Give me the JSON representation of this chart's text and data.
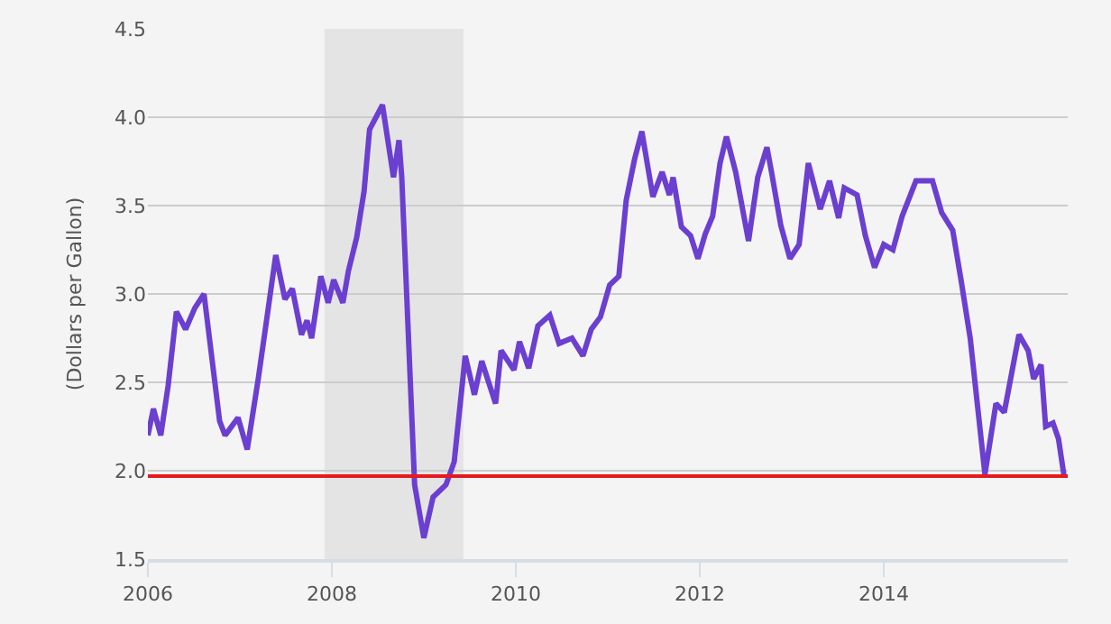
{
  "chart_data": {
    "type": "line",
    "ylabel": "(Dollars per Gallon)",
    "xlim": [
      2006,
      2016
    ],
    "xticks": [
      {
        "value": 2006,
        "label": "2006"
      },
      {
        "value": 2008,
        "label": "2008"
      },
      {
        "value": 2010,
        "label": "2010"
      },
      {
        "value": 2012,
        "label": "2012"
      },
      {
        "value": 2014,
        "label": "2014"
      }
    ],
    "ylim": [
      1.5,
      4.5
    ],
    "yticks": [
      1.5,
      {
        "value": 2,
        "label": "2.0"
      },
      2.5,
      {
        "value": 3,
        "label": "3.0"
      },
      3.5,
      {
        "value": 4,
        "label": "4.0"
      },
      4.5
    ],
    "grid": "y",
    "x": [
      2006.0,
      2006.06,
      2006.14,
      2006.22,
      2006.31,
      2006.41,
      2006.51,
      2006.61,
      2006.78,
      2006.84,
      2006.98,
      2007.08,
      2007.2,
      2007.29,
      2007.39,
      2007.49,
      2007.57,
      2007.67,
      2007.73,
      2007.78,
      2007.88,
      2007.96,
      2008.02,
      2008.12,
      2008.18,
      2008.27,
      2008.35,
      2008.41,
      2008.55,
      2008.67,
      2008.73,
      2008.76,
      2008.9,
      2009.0,
      2009.1,
      2009.24,
      2009.33,
      2009.45,
      2009.55,
      2009.63,
      2009.78,
      2009.84,
      2009.98,
      2010.04,
      2010.14,
      2010.24,
      2010.37,
      2010.47,
      2010.61,
      2010.73,
      2010.82,
      2010.92,
      2011.02,
      2011.12,
      2011.2,
      2011.29,
      2011.37,
      2011.49,
      2011.59,
      2011.67,
      2011.71,
      2011.8,
      2011.9,
      2011.98,
      2012.06,
      2012.14,
      2012.22,
      2012.29,
      2012.39,
      2012.53,
      2012.63,
      2012.73,
      2012.78,
      2012.88,
      2012.98,
      2013.08,
      2013.18,
      2013.31,
      2013.41,
      2013.51,
      2013.57,
      2013.71,
      2013.8,
      2013.9,
      2014.0,
      2014.1,
      2014.2,
      2014.35,
      2014.53,
      2014.63,
      2014.75,
      2014.84,
      2014.94,
      2015.1,
      2015.22,
      2015.31,
      2015.47,
      2015.57,
      2015.63,
      2015.71,
      2015.76,
      2015.84,
      2015.9,
      2015.96
    ],
    "series": [
      {
        "color": "#6b3fd0",
        "line_style": "solid",
        "marker": "none",
        "values": [
          2.2,
          2.35,
          2.2,
          2.48,
          2.9,
          2.8,
          2.92,
          3.0,
          2.28,
          2.2,
          2.3,
          2.12,
          2.52,
          2.85,
          3.22,
          2.97,
          3.03,
          2.77,
          2.85,
          2.75,
          3.1,
          2.95,
          3.08,
          2.95,
          3.13,
          3.32,
          3.58,
          3.93,
          4.07,
          3.66,
          3.87,
          3.66,
          1.92,
          1.62,
          1.85,
          1.92,
          2.05,
          2.65,
          2.43,
          2.62,
          2.38,
          2.68,
          2.57,
          2.73,
          2.58,
          2.82,
          2.88,
          2.72,
          2.75,
          2.65,
          2.8,
          2.87,
          3.05,
          3.1,
          3.53,
          3.76,
          3.92,
          3.55,
          3.69,
          3.56,
          3.66,
          3.38,
          3.33,
          3.2,
          3.34,
          3.44,
          3.74,
          3.89,
          3.69,
          3.3,
          3.66,
          3.83,
          3.69,
          3.39,
          3.2,
          3.28,
          3.74,
          3.48,
          3.64,
          3.43,
          3.6,
          3.56,
          3.33,
          3.15,
          3.28,
          3.25,
          3.44,
          3.64,
          3.64,
          3.46,
          3.36,
          3.08,
          2.75,
          1.98,
          2.38,
          2.33,
          2.77,
          2.68,
          2.52,
          2.6,
          2.25,
          2.27,
          2.18,
          1.97
        ]
      }
    ],
    "ref_lines": [
      {
        "axis": "y",
        "value": 1.97,
        "color": "#e8191c",
        "line_style": "solid"
      }
    ],
    "bands": [
      {
        "axis": "x",
        "from": 2007.92,
        "to": 2009.43,
        "color": "#e4e4e4"
      }
    ]
  }
}
